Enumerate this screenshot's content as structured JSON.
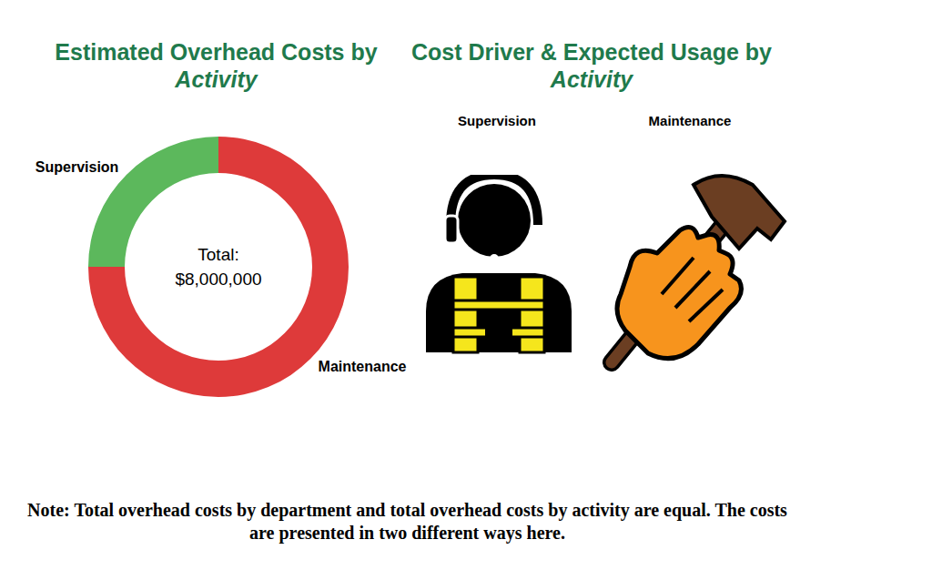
{
  "chart_data": {
    "type": "pie",
    "title": "Estimated Overhead Costs by Activity",
    "categories": [
      "Supervision",
      "Maintenance"
    ],
    "values": [
      2000000,
      6000000
    ],
    "colors": [
      "#5cb85c",
      "#de3a3a"
    ],
    "center_text": [
      "Total:",
      "$8,000,000"
    ]
  },
  "panel": {
    "title": "Cost Driver & Expected Usage by Activity",
    "items": [
      "Supervision",
      "Maintenance"
    ]
  },
  "note": "Note: Total overhead costs by department and total overhead costs by activity are equal. The costs are presented in two different ways here."
}
